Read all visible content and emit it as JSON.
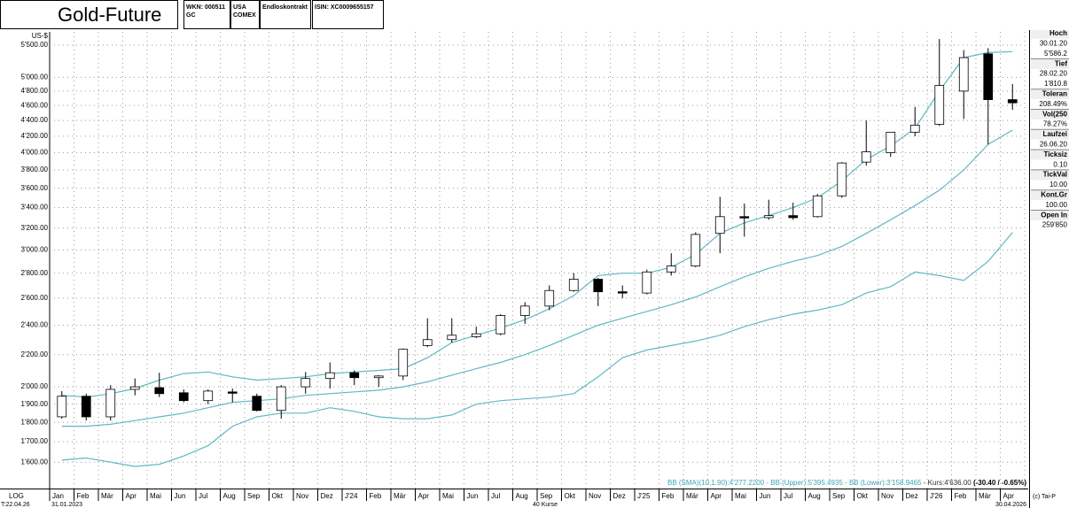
{
  "header": {
    "title": "Gold-Future",
    "wkn": "WKN: 000511",
    "code": "GC",
    "country": "USA",
    "exchange": "COMEX",
    "contract": "Endloskontrakt",
    "isin": "ISIN: XC0009655157"
  },
  "chart_data": {
    "type": "candlestick",
    "y_unit": "US-$",
    "log_scale": true,
    "grid": true,
    "ylim": [
      1480,
      5720
    ],
    "yticks": [
      {
        "value": 1600,
        "label": "1'600.00"
      },
      {
        "value": 1700,
        "label": "1'700.00"
      },
      {
        "value": 1800,
        "label": "1'800.00"
      },
      {
        "value": 1900,
        "label": "1'900.00"
      },
      {
        "value": 2000,
        "label": "2'000.00"
      },
      {
        "value": 2200,
        "label": "2'200.00"
      },
      {
        "value": 2400,
        "label": "2'400.00"
      },
      {
        "value": 2600,
        "label": "2'600.00"
      },
      {
        "value": 2800,
        "label": "2'800.00"
      },
      {
        "value": 3000,
        "label": "3'000.00"
      },
      {
        "value": 3200,
        "label": "3'200.00"
      },
      {
        "value": 3400,
        "label": "3'400.00"
      },
      {
        "value": 3600,
        "label": "3'600.00"
      },
      {
        "value": 3800,
        "label": "3'800.00"
      },
      {
        "value": 4000,
        "label": "4'000.00"
      },
      {
        "value": 4200,
        "label": "4'200.00"
      },
      {
        "value": 4400,
        "label": "4'400.00"
      },
      {
        "value": 4600,
        "label": "4'600.00"
      },
      {
        "value": 4800,
        "label": "4'800.00"
      },
      {
        "value": 5000,
        "label": "5'000.00"
      },
      {
        "value": 5500,
        "label": "5'500.00"
      }
    ],
    "categories": [
      "Jan",
      "Feb",
      "Mär",
      "Apr",
      "Mai",
      "Jun",
      "Jul",
      "Aug",
      "Sep",
      "Okt",
      "Nov",
      "Dez",
      "J'24",
      "Feb",
      "Mär",
      "Apr",
      "Mai",
      "Jun",
      "Jul",
      "Aug",
      "Sep",
      "Okt",
      "Nov",
      "Dez",
      "J'25",
      "Feb",
      "Mär",
      "Apr",
      "Mai",
      "Jun",
      "Jul",
      "Aug",
      "Sep",
      "Okt",
      "Nov",
      "Dez",
      "J'26",
      "Feb",
      "Mär",
      "Apr"
    ],
    "candles": {
      "color_up": "#ffffff",
      "color_down": "#000000",
      "open": [
        1830,
        1945,
        1830,
        1985,
        1995,
        1965,
        1920,
        1970,
        1945,
        1865,
        2000,
        2050,
        2085,
        2055,
        2065,
        2260,
        2300,
        2320,
        2340,
        2470,
        2540,
        2660,
        2750,
        2650,
        2640,
        2810,
        2860,
        3150,
        3310,
        3300,
        3320,
        3310,
        3520,
        3890,
        4000,
        4250,
        4350,
        4800,
        5360,
        4680
      ],
      "high": [
        1975,
        1960,
        2010,
        2050,
        2085,
        1985,
        1985,
        1990,
        1960,
        2010,
        2090,
        2150,
        2100,
        2070,
        2240,
        2450,
        2450,
        2390,
        2480,
        2570,
        2700,
        2800,
        2760,
        2700,
        2830,
        2970,
        3160,
        3510,
        3440,
        3480,
        3450,
        3540,
        3890,
        4400,
        4250,
        4580,
        5600,
        5420,
        5450,
        4900
      ],
      "low": [
        1820,
        1810,
        1810,
        1950,
        1940,
        1910,
        1900,
        1910,
        1860,
        1820,
        1960,
        1990,
        2010,
        2000,
        2040,
        2250,
        2280,
        2310,
        2330,
        2410,
        2510,
        2650,
        2540,
        2600,
        2630,
        2780,
        2850,
        2970,
        3120,
        3280,
        3280,
        3300,
        3500,
        3850,
        3950,
        4200,
        4330,
        4420,
        4100,
        4540
      ],
      "close": [
        1945,
        1830,
        1985,
        2000,
        1960,
        1920,
        1975,
        1965,
        1865,
        2000,
        2050,
        2085,
        2055,
        2065,
        2235,
        2300,
        2330,
        2340,
        2470,
        2540,
        2660,
        2750,
        2650,
        2640,
        2810,
        2860,
        3140,
        3310,
        3300,
        3320,
        3300,
        3520,
        3880,
        4010,
        4250,
        4340,
        4880,
        5300,
        4680,
        4636
      ]
    },
    "overlays": [
      {
        "color": "#5fb8c4",
        "values": [
          1950,
          1940,
          1960,
          1990,
          2040,
          2080,
          2090,
          2060,
          2040,
          2050,
          2060,
          2080,
          2090,
          2100,
          2110,
          2180,
          2280,
          2330,
          2380,
          2440,
          2520,
          2620,
          2780,
          2800,
          2800,
          2850,
          2960,
          3150,
          3250,
          3320,
          3400,
          3500,
          3680,
          3920,
          4080,
          4300,
          4800,
          5300,
          5380,
          5395
        ]
      },
      {
        "color": "#5fb8c4",
        "values": [
          1780,
          1780,
          1790,
          1810,
          1830,
          1850,
          1880,
          1910,
          1920,
          1930,
          1950,
          1960,
          1970,
          1980,
          2000,
          2030,
          2070,
          2110,
          2150,
          2200,
          2260,
          2330,
          2400,
          2450,
          2500,
          2550,
          2610,
          2690,
          2770,
          2840,
          2900,
          2950,
          3030,
          3150,
          3280,
          3420,
          3580,
          3800,
          4100,
          4277
        ]
      },
      {
        "color": "#5fb8c4",
        "values": [
          1610,
          1620,
          1600,
          1580,
          1590,
          1630,
          1680,
          1780,
          1830,
          1850,
          1850,
          1880,
          1860,
          1830,
          1820,
          1820,
          1840,
          1900,
          1920,
          1930,
          1940,
          1960,
          2060,
          2180,
          2230,
          2260,
          2290,
          2330,
          2390,
          2440,
          2480,
          2510,
          2550,
          2640,
          2690,
          2810,
          2780,
          2740,
          2900,
          3159
        ]
      }
    ],
    "status": [
      {
        "text": "BB (SMA)(10,1.90):4'277.2200",
        "color": "#3aa6b4",
        "bold": false
      },
      {
        "text": " - BB (Upper):5'395.4935",
        "color": "#3aa6b4",
        "bold": false
      },
      {
        "text": " - BB (Lower):3'158.9465",
        "color": "#3aa6b4",
        "bold": false
      },
      {
        "text": " - Kurs:4'636.00 ",
        "color": "#333333",
        "bold": false
      },
      {
        "text": "(-30.40 / -0.65%)",
        "color": "#000000",
        "bold": true
      }
    ]
  },
  "footer": {
    "scale": "LOG",
    "time": "T:22.04.26",
    "start": "31.01.2023",
    "count": "40 Kurse",
    "end": "30.04.2026",
    "copyright": "(c) Tai-P"
  },
  "panel": [
    {
      "label": "Hoch",
      "values": [
        "30.01.20",
        "5'586.2"
      ]
    },
    {
      "label": "Tief",
      "values": [
        "28.02.20",
        "1'810.8"
      ]
    },
    {
      "label": "Toleran",
      "values": [
        "208.49%"
      ]
    },
    {
      "label": "Vol(250",
      "values": [
        "78.27%"
      ]
    },
    {
      "label": "Laufzei",
      "values": [
        "26.06.20"
      ]
    },
    {
      "label": "Ticksiz",
      "values": [
        "0.10"
      ]
    },
    {
      "label": "TickVal",
      "values": [
        "10.00"
      ]
    },
    {
      "label": "Kont.Gr",
      "values": [
        "100.00"
      ]
    },
    {
      "label": "Open In",
      "values": [
        "259'850"
      ]
    }
  ]
}
